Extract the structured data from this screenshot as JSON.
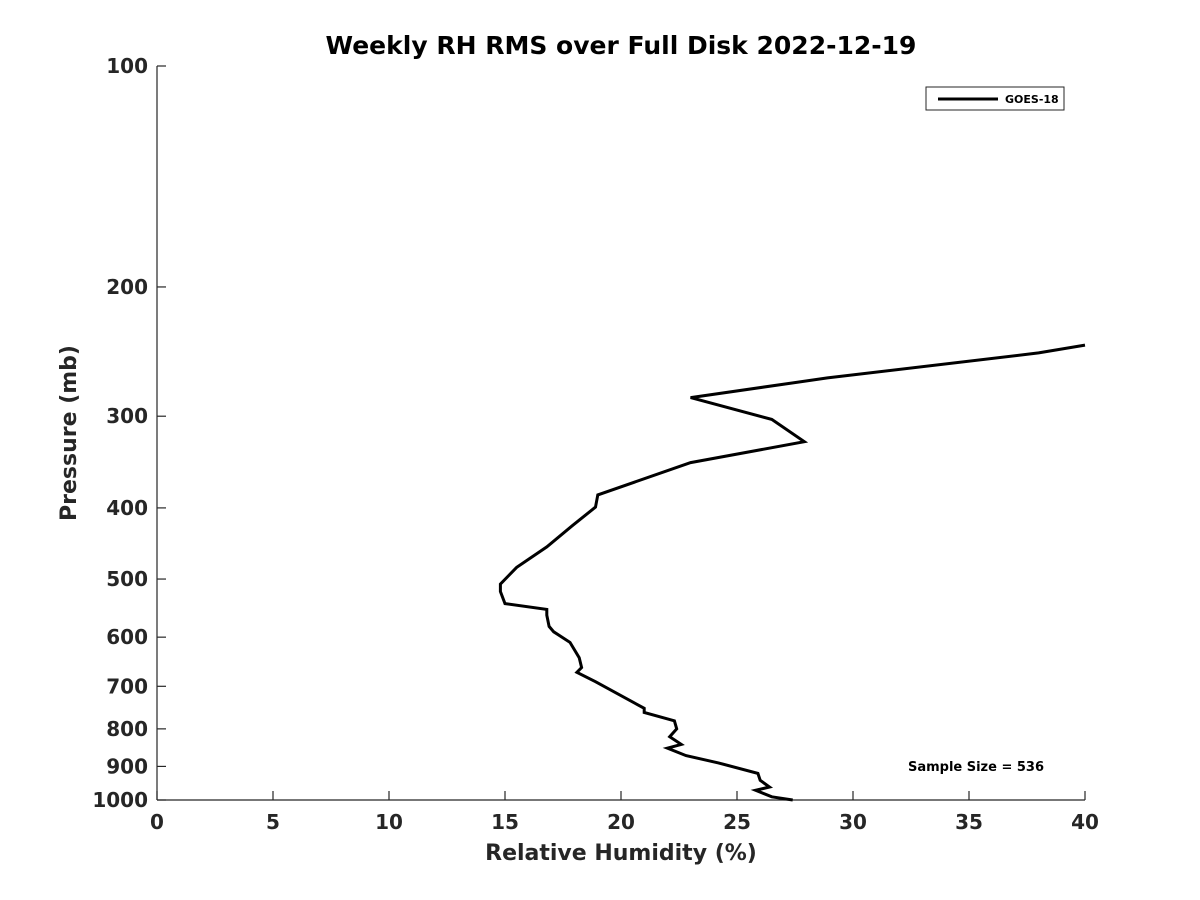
{
  "chart_data": {
    "type": "line",
    "title": "Weekly RH RMS over Full Disk 2022-12-19",
    "xlabel": "Relative Humidity (%)",
    "ylabel": "Pressure (mb)",
    "xlim": [
      0,
      40
    ],
    "ylim": [
      100,
      1000
    ],
    "y_scale": "log",
    "y_reversed": true,
    "grid": false,
    "legend_position": "top-right",
    "x_ticks": [
      0,
      5,
      10,
      15,
      20,
      25,
      30,
      35,
      40
    ],
    "x_tick_labels": [
      "0",
      "5",
      "10",
      "15",
      "20",
      "25",
      "30",
      "35",
      "40"
    ],
    "y_ticks": [
      100,
      200,
      300,
      400,
      500,
      600,
      700,
      800,
      900,
      1000
    ],
    "y_tick_labels": [
      "100",
      "200",
      "300",
      "400",
      "500",
      "600",
      "700",
      "800",
      "900",
      "1000"
    ],
    "annotation": "Sample Size = 536",
    "colors": {
      "series": "#000000",
      "axis": "#262626"
    },
    "series": [
      {
        "name": "GOES-18",
        "points": [
          [
            40.0,
            240
          ],
          [
            38.0,
            246
          ],
          [
            28.9,
            266
          ],
          [
            23.0,
            283
          ],
          [
            26.5,
            303
          ],
          [
            27.9,
            325
          ],
          [
            23.0,
            347
          ],
          [
            19.0,
            384
          ],
          [
            18.9,
            399
          ],
          [
            17.9,
            423
          ],
          [
            16.8,
            452
          ],
          [
            15.5,
            482
          ],
          [
            14.8,
            508
          ],
          [
            14.8,
            520
          ],
          [
            15.0,
            540
          ],
          [
            16.8,
            550
          ],
          [
            16.8,
            560
          ],
          [
            16.9,
            580
          ],
          [
            17.1,
            590
          ],
          [
            17.8,
            610
          ],
          [
            18.2,
            640
          ],
          [
            18.3,
            660
          ],
          [
            18.1,
            670
          ],
          [
            18.9,
            690
          ],
          [
            21.0,
            750
          ],
          [
            21.0,
            760
          ],
          [
            22.3,
            780
          ],
          [
            22.4,
            800
          ],
          [
            22.1,
            820
          ],
          [
            22.6,
            840
          ],
          [
            22.0,
            850
          ],
          [
            22.8,
            870
          ],
          [
            24.2,
            890
          ],
          [
            25.9,
            920
          ],
          [
            26.0,
            940
          ],
          [
            26.4,
            960
          ],
          [
            25.8,
            970
          ],
          [
            26.5,
            990
          ],
          [
            27.4,
            1000
          ]
        ]
      }
    ]
  }
}
